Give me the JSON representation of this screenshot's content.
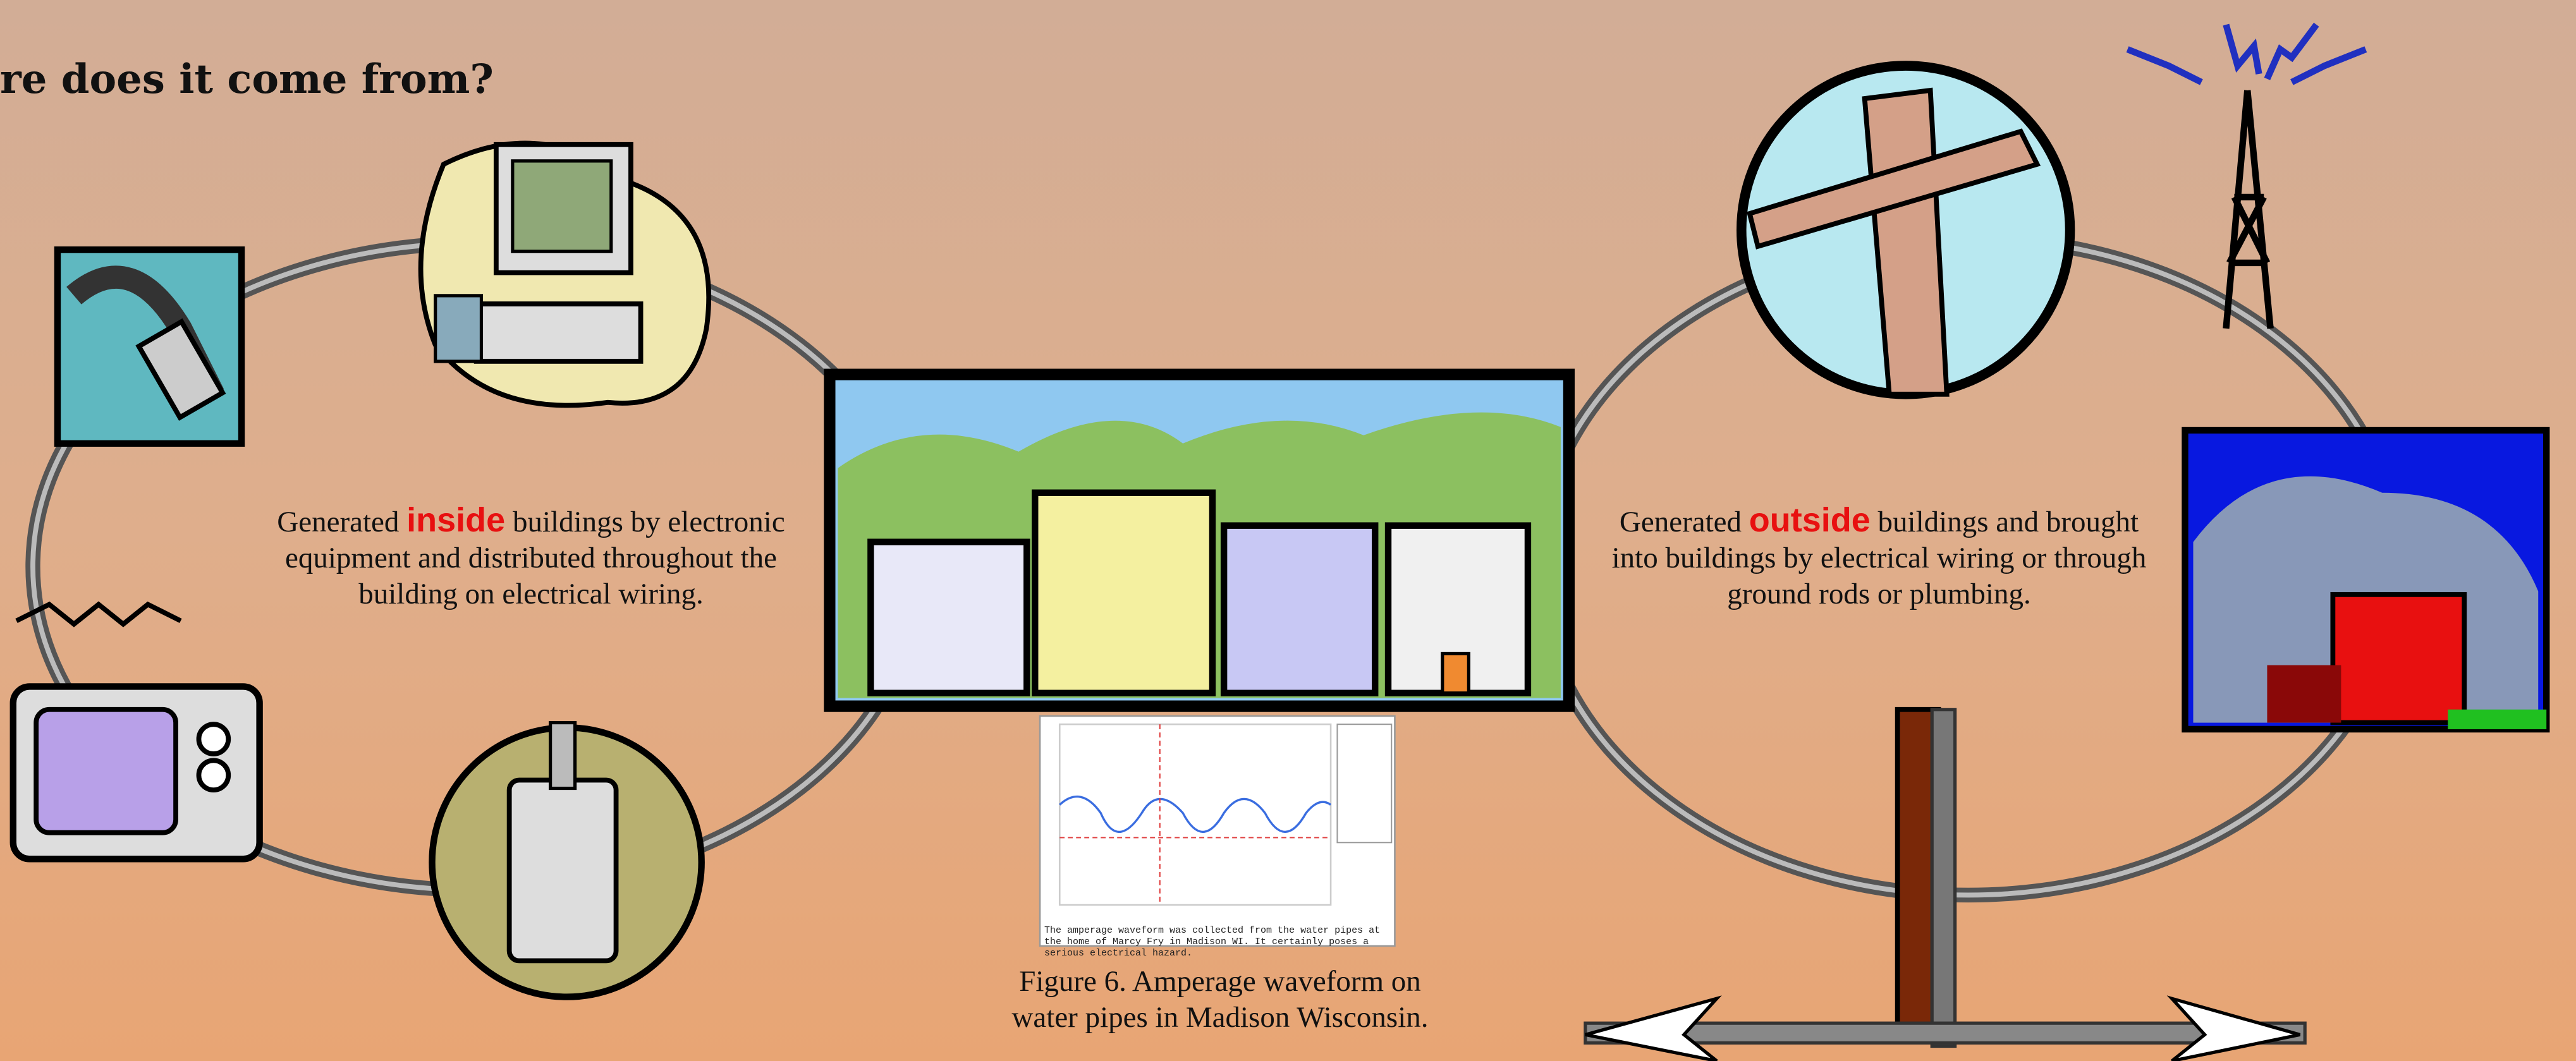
{
  "title": "re does it come from?",
  "left_text": {
    "before": "Generated",
    "emphasis": "inside",
    "after": "buildings by electronic equipment and distributed throughout the building on electrical wiring."
  },
  "right_text": {
    "before": "Generated",
    "emphasis": "outside",
    "after": "buildings and brought into buildings by electrical wiring or through ground rods or plumbing."
  },
  "figure": {
    "note": "The amperage waveform was collected from the water pipes at the home of Marcy Fry in Madison WI. It certainly poses a serious electrical hazard.",
    "caption": "Figure 6.  Amperage waveform on water pipes in Madison Wisconsin."
  }
}
